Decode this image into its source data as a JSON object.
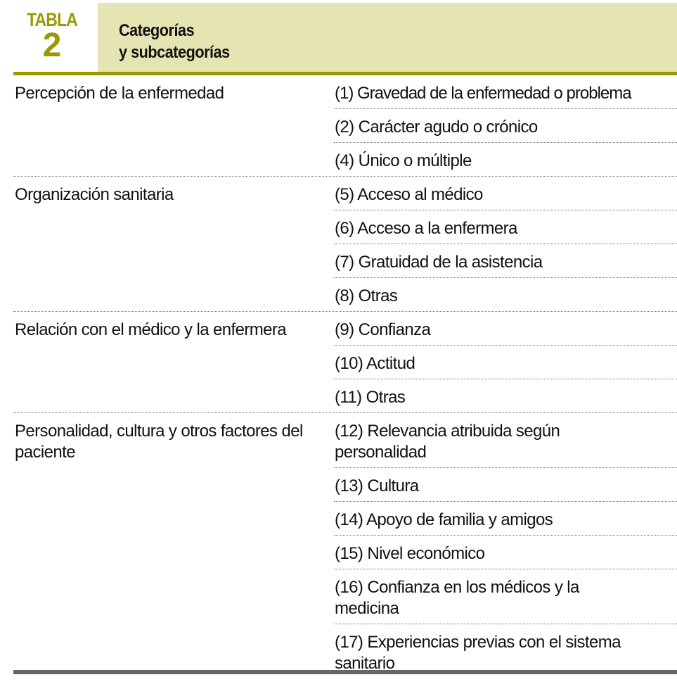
{
  "table_label": "TABLA",
  "table_number": "2",
  "title_line1": "Categorías",
  "title_line2": "y subcategorías",
  "colors": {
    "accent": "#9a9a00",
    "title_bg": "#e5e4b3",
    "bottom_rule": "#666666"
  },
  "groups": [
    {
      "category": "Percepción de la enfermedad",
      "items": [
        "(1) Gravedad de la enfermedad o problema",
        "(2) Carácter agudo o crónico",
        "(4) Único o múltiple"
      ]
    },
    {
      "category": "Organización sanitaria",
      "items": [
        "(5) Acceso al médico",
        "(6) Acceso a la enfermera",
        "(7) Gratuidad de la asistencia",
        "(8) Otras"
      ]
    },
    {
      "category": "Relación con el médico y la enfermera",
      "items": [
        "(9) Confianza",
        "(10) Actitud",
        "(11) Otras"
      ]
    },
    {
      "category": "Personalidad, cultura y otros factores del paciente",
      "items": [
        "(12) Relevancia atribuida según personalidad",
        "(13) Cultura",
        "(14) Apoyo de familia y amigos",
        "(15) Nivel económico",
        "(16) Confianza en los médicos y la medicina",
        "(17) Experiencias previas con el sistema sanitario"
      ]
    }
  ]
}
